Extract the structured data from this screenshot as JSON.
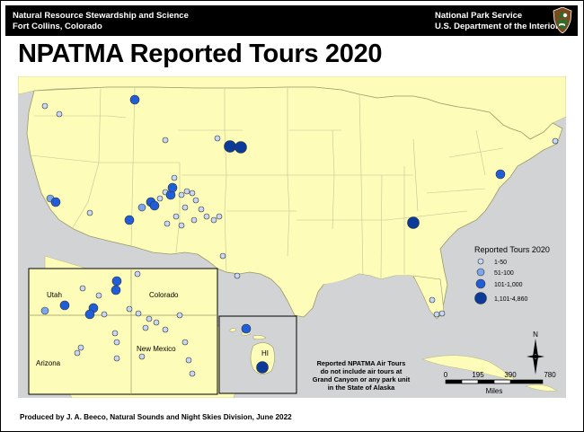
{
  "header": {
    "left_line1": "Natural Resource Stewardship and Science",
    "left_line2": "Fort Collins, Colorado",
    "right_line1": "National Park Service",
    "right_line2": "U.S. Department of the Interior",
    "logo_icon": "nps-arrowhead-icon"
  },
  "title": "NPATMA Reported Tours 2020",
  "footer": "Produced by J. A. Beeco, Natural Sounds and Night Skies Division, June 2022",
  "map": {
    "land_color": "#fdfcb8",
    "water_color": "#d2d3d5",
    "marker_colors": {
      "tier1": "#c7d7f7",
      "tier2": "#7aa7f0",
      "tier3": "#1f5ed8",
      "tier4": "#0b3a99"
    }
  },
  "inset_southwest": {
    "labels": {
      "utah": "Utah",
      "colorado": "Colorado",
      "arizona": "Arizona",
      "new_mexico": "New Mexico"
    }
  },
  "inset_hawaii": {
    "label": "HI"
  },
  "legend": {
    "title": "Reported Tours 2020",
    "items": [
      {
        "label": "1-50",
        "tier": "tier1"
      },
      {
        "label": "51-100",
        "tier": "tier2"
      },
      {
        "label": "101-1,000",
        "tier": "tier3"
      },
      {
        "label": "1,101-4,860",
        "tier": "tier4"
      }
    ]
  },
  "note": {
    "line1": "Reported NPATMA Air Tours",
    "line2": "do not include air tours at",
    "line3": "Grand Canyon or any park unit",
    "line4": "in the State of Alaska"
  },
  "scale_bar": {
    "ticks": [
      "0",
      "195",
      "390",
      "780"
    ],
    "unit": "Miles"
  },
  "north_arrow": {
    "label": "N",
    "icon": "north-arrow-icon"
  }
}
